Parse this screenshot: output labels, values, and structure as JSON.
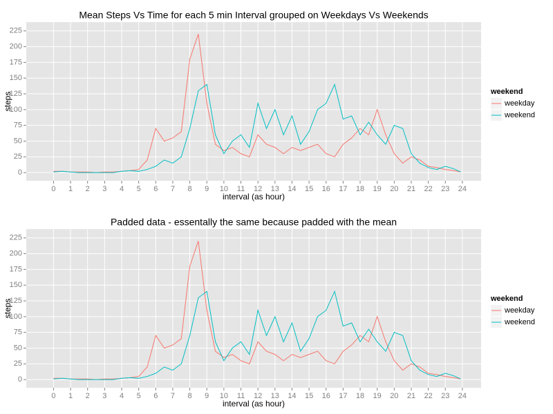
{
  "chart_data": [
    {
      "type": "line",
      "title": "Mean Steps Vs Time for each 5 min Interval grouped on Weekdays Vs Weekends",
      "x_label": "interval (as hour)",
      "y_label": "steps",
      "legend_title": "weekend",
      "legend_position": "right",
      "grid": true,
      "xlim": [
        -1.6,
        25.1
      ],
      "ylim": [
        -13,
        239
      ],
      "xticks": [
        0,
        1,
        2,
        3,
        4,
        5,
        6,
        7,
        8,
        9,
        10,
        11,
        12,
        13,
        14,
        15,
        16,
        17,
        18,
        19,
        20,
        21,
        22,
        23,
        24
      ],
      "yticks": [
        0,
        25,
        50,
        75,
        100,
        125,
        150,
        175,
        200,
        225
      ],
      "x": [
        0,
        0.5,
        1,
        1.5,
        2,
        2.5,
        3,
        3.5,
        4,
        4.5,
        5,
        5.5,
        6,
        6.5,
        7,
        7.5,
        8,
        8.5,
        9,
        9.5,
        10,
        10.5,
        11,
        11.5,
        12,
        12.5,
        13,
        13.5,
        14,
        14.5,
        15,
        15.5,
        16,
        16.5,
        17,
        17.5,
        18,
        18.5,
        19,
        19.5,
        20,
        20.5,
        21,
        21.5,
        22,
        22.5,
        23,
        23.5,
        23.9
      ],
      "series": [
        {
          "name": "weekday",
          "color": "#F8766D",
          "values": [
            2,
            2,
            1,
            1,
            1,
            0,
            1,
            1,
            2,
            3,
            5,
            20,
            70,
            50,
            55,
            65,
            180,
            220,
            110,
            45,
            35,
            40,
            30,
            25,
            60,
            45,
            40,
            30,
            40,
            35,
            40,
            45,
            30,
            25,
            45,
            55,
            70,
            60,
            100,
            60,
            30,
            15,
            25,
            20,
            10,
            8,
            5,
            3,
            1
          ]
        },
        {
          "name": "weekend",
          "color": "#00BFC4",
          "values": [
            1,
            2,
            1,
            0,
            0,
            0,
            0,
            0,
            2,
            3,
            2,
            5,
            10,
            20,
            15,
            25,
            70,
            130,
            140,
            60,
            30,
            50,
            60,
            40,
            110,
            70,
            100,
            60,
            90,
            45,
            65,
            100,
            110,
            140,
            85,
            90,
            60,
            80,
            60,
            45,
            75,
            70,
            30,
            15,
            8,
            5,
            10,
            6,
            1
          ]
        }
      ]
    },
    {
      "type": "line",
      "title": "Padded data - essentally the same because padded with the mean",
      "x_label": "interval (as hour)",
      "y_label": "steps",
      "legend_title": "weekend",
      "legend_position": "right",
      "grid": true,
      "xlim": [
        -1.6,
        25.1
      ],
      "ylim": [
        -13,
        239
      ],
      "xticks": [
        0,
        1,
        2,
        3,
        4,
        5,
        6,
        7,
        8,
        9,
        10,
        11,
        12,
        13,
        14,
        15,
        16,
        17,
        18,
        19,
        20,
        21,
        22,
        23,
        24
      ],
      "yticks": [
        0,
        25,
        50,
        75,
        100,
        125,
        150,
        175,
        200,
        225
      ],
      "x": [
        0,
        0.5,
        1,
        1.5,
        2,
        2.5,
        3,
        3.5,
        4,
        4.5,
        5,
        5.5,
        6,
        6.5,
        7,
        7.5,
        8,
        8.5,
        9,
        9.5,
        10,
        10.5,
        11,
        11.5,
        12,
        12.5,
        13,
        13.5,
        14,
        14.5,
        15,
        15.5,
        16,
        16.5,
        17,
        17.5,
        18,
        18.5,
        19,
        19.5,
        20,
        20.5,
        21,
        21.5,
        22,
        22.5,
        23,
        23.5,
        23.9
      ],
      "series": [
        {
          "name": "weekday",
          "color": "#F8766D",
          "values": [
            2,
            2,
            1,
            1,
            1,
            0,
            1,
            1,
            2,
            3,
            5,
            20,
            70,
            50,
            55,
            65,
            180,
            220,
            110,
            45,
            35,
            40,
            30,
            25,
            60,
            45,
            40,
            30,
            40,
            35,
            40,
            45,
            30,
            25,
            45,
            55,
            70,
            60,
            100,
            60,
            30,
            15,
            25,
            20,
            10,
            8,
            5,
            3,
            1
          ]
        },
        {
          "name": "weekend",
          "color": "#00BFC4",
          "values": [
            1,
            2,
            1,
            0,
            0,
            0,
            0,
            0,
            2,
            3,
            2,
            5,
            10,
            20,
            15,
            25,
            70,
            130,
            140,
            60,
            30,
            50,
            60,
            40,
            110,
            70,
            100,
            60,
            90,
            45,
            65,
            100,
            110,
            140,
            85,
            90,
            60,
            80,
            60,
            45,
            75,
            70,
            30,
            15,
            8,
            5,
            10,
            6,
            1
          ]
        }
      ]
    }
  ]
}
